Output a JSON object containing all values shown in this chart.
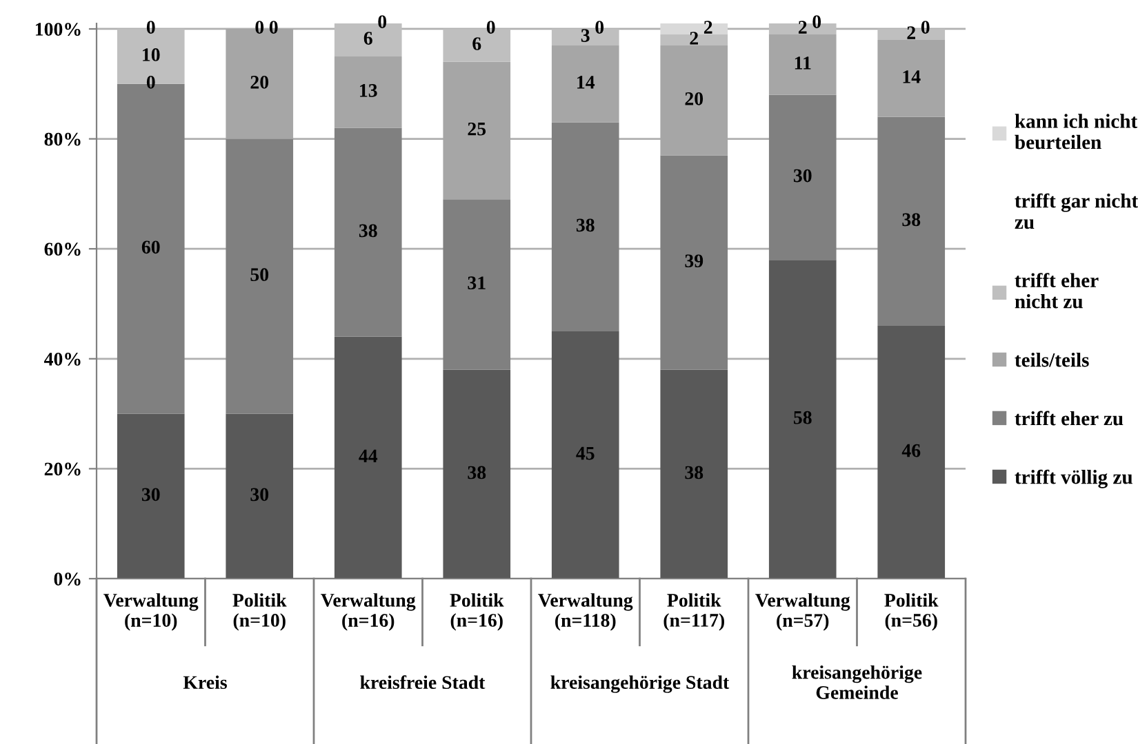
{
  "chart_data": {
    "type": "bar",
    "stacked": true,
    "categories": [
      "Verwaltung\n(n=10)",
      "Politik\n(n=10)",
      "Verwaltung\n(n=16)",
      "Politik\n(n=16)",
      "Verwaltung\n(n=118)",
      "Politik\n(n=117)",
      "Verwaltung\n(n=57)",
      "Politik\n(n=56)"
    ],
    "annotations": [
      "Kreis",
      "kreisfreie Stadt",
      "kreisangehörige Stadt",
      "kreisangehörige\nGemeinde"
    ],
    "series": [
      {
        "name": "trifft völlig zu",
        "color": "#595959",
        "values": [
          30,
          30,
          44,
          38,
          45,
          38,
          58,
          46
        ],
        "value_labels": [
          "30",
          "30",
          "44",
          "38",
          "45",
          "38",
          "58",
          "46"
        ]
      },
      {
        "name": "trifft eher zu",
        "color": "#808080",
        "values": [
          60,
          50,
          38,
          31,
          38,
          39,
          30,
          38
        ],
        "value_labels": [
          "60",
          "50",
          "38",
          "31",
          "38",
          "39",
          "30",
          "38"
        ]
      },
      {
        "name": "teils/teils",
        "color": "#a6a6a6",
        "values": [
          0,
          20,
          13,
          25,
          14,
          20,
          11,
          14
        ],
        "value_labels": [
          "0",
          "20",
          "13",
          "25",
          "14",
          "20",
          "11",
          "14"
        ]
      },
      {
        "name": "trifft eher\nnicht zu",
        "color": "#bfbfbf",
        "values": [
          10,
          0,
          6,
          6,
          3,
          2,
          2,
          2
        ],
        "value_labels": [
          "10",
          "0",
          "6",
          "6",
          "3",
          "2",
          "2",
          "2"
        ]
      },
      {
        "name": "trifft gar nicht\nzu",
        "values": [
          0,
          0,
          0,
          0,
          0,
          0,
          0,
          0
        ]
      },
      {
        "name": "kann ich nicht\nbeurteilen",
        "color": "#d9d9d9",
        "values": [
          0,
          0,
          0,
          0,
          0,
          2,
          0,
          0
        ],
        "value_labels": [
          "0",
          "0",
          "0",
          "0",
          "0",
          "2",
          "0",
          "0"
        ]
      }
    ],
    "ylim": [
      0,
      101
    ],
    "yticks": [
      {
        "value": 0,
        "label": "0%"
      },
      {
        "value": 20,
        "label": "20%"
      },
      {
        "value": 40,
        "label": "40%"
      },
      {
        "value": 60,
        "label": "60%"
      },
      {
        "value": 80,
        "label": "80%"
      },
      {
        "value": 100,
        "label": "100%"
      }
    ],
    "grid": "y",
    "legend": "right"
  }
}
